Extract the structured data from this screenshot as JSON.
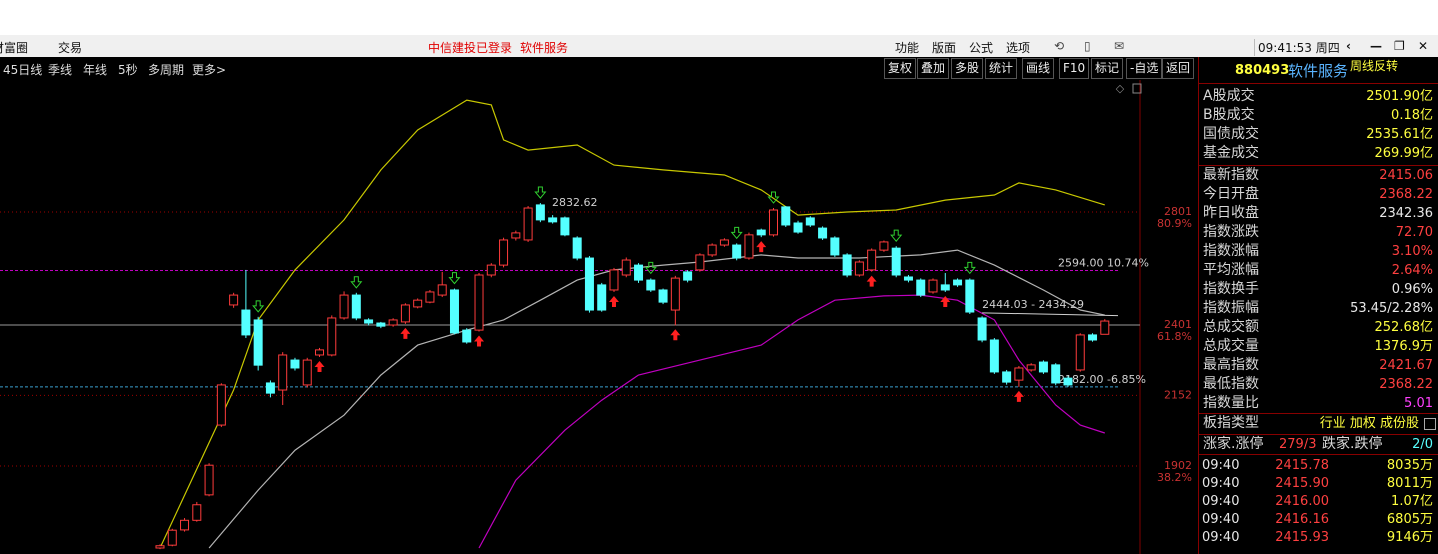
{
  "menu_bar": {
    "left": [
      "财富圈",
      "交易"
    ],
    "login": "中信建投已登录",
    "service": "软件服务",
    "right": [
      "功能",
      "版面",
      "公式",
      "选项"
    ],
    "clock": "09:41:53 周四"
  },
  "toolbar": {
    "periods": [
      "45日线",
      "季线",
      "年线",
      "5秒",
      "多周期",
      "更多>"
    ],
    "buttons": [
      "复权",
      "叠加",
      "多股",
      "统计",
      "画线",
      "F10",
      "标记",
      "-自选",
      "返回"
    ]
  },
  "chart_data": {
    "type": "candlestick",
    "up_color": "#ff3c3c",
    "down_color": "#54ffff",
    "ylim": [
      1612,
      3268
    ],
    "yticks": [
      2801,
      2401,
      2152,
      1902
    ],
    "ytick_percent": [
      "80.9%",
      "61.8%",
      null,
      "38.2%"
    ],
    "open": [
      1612,
      1622,
      1676,
      1710,
      1800,
      2047,
      2472,
      2454,
      2419,
      2196,
      2171,
      2277,
      2189,
      2295,
      2295,
      2426,
      2507,
      2419,
      2408,
      2401,
      2412,
      2465,
      2482,
      2507,
      2525,
      2383,
      2383,
      2578,
      2613,
      2709,
      2702,
      2826,
      2780,
      2780,
      2709,
      2638,
      2543,
      2525,
      2578,
      2613,
      2560,
      2525,
      2454,
      2589,
      2596,
      2649,
      2684,
      2684,
      2638,
      2737,
      2720,
      2819,
      2762,
      2780,
      2744,
      2709,
      2649,
      2578,
      2596,
      2666,
      2673,
      2571,
      2560,
      2518,
      2543,
      2560,
      2560,
      2426,
      2348,
      2235,
      2206,
      2242,
      2270,
      2260,
      2213,
      2242,
      2366,
      2368.22
    ],
    "close": [
      1620,
      1675,
      1710,
      1765,
      1905,
      2189,
      2507,
      2366,
      2259,
      2160,
      2295,
      2249,
      2277,
      2313,
      2426,
      2507,
      2426,
      2408,
      2397,
      2419,
      2472,
      2489,
      2518,
      2543,
      2373,
      2341,
      2578,
      2613,
      2702,
      2727,
      2815,
      2773,
      2766,
      2720,
      2638,
      2454,
      2454,
      2596,
      2631,
      2560,
      2525,
      2482,
      2567,
      2560,
      2649,
      2684,
      2702,
      2638,
      2720,
      2720,
      2808,
      2755,
      2730,
      2755,
      2709,
      2649,
      2578,
      2624,
      2666,
      2695,
      2578,
      2560,
      2507,
      2560,
      2525,
      2543,
      2447,
      2348,
      2235,
      2199,
      2249,
      2260,
      2235,
      2196,
      2189,
      2366,
      2348,
      2415.06
    ],
    "high": [
      1625,
      1680,
      1718,
      1775,
      1912,
      2195,
      2515,
      2596,
      2430,
      2205,
      2305,
      2285,
      2285,
      2320,
      2435,
      2520,
      2515,
      2425,
      2412,
      2425,
      2478,
      2495,
      2525,
      2589,
      2530,
      2390,
      2585,
      2620,
      2710,
      2735,
      2822,
      2832.62,
      2790,
      2785,
      2715,
      2645,
      2550,
      2603,
      2640,
      2620,
      2566,
      2530,
      2575,
      2595,
      2655,
      2690,
      2708,
      2690,
      2728,
      2742,
      2815,
      2822,
      2770,
      2786,
      2750,
      2715,
      2655,
      2630,
      2672,
      2700,
      2680,
      2578,
      2566,
      2566,
      2585,
      2566,
      2566,
      2432,
      2355,
      2242,
      2256,
      2266,
      2276,
      2266,
      2220,
      2372,
      2372,
      2421.67
    ],
    "low": [
      1608,
      1618,
      1670,
      1705,
      1795,
      2040,
      2462,
      2355,
      2240,
      2145,
      2118,
      2240,
      2180,
      2288,
      2290,
      2420,
      2418,
      2400,
      2390,
      2395,
      2405,
      2460,
      2478,
      2500,
      2368,
      2335,
      2378,
      2570,
      2605,
      2700,
      2695,
      2765,
      2760,
      2715,
      2630,
      2445,
      2448,
      2518,
      2570,
      2550,
      2518,
      2475,
      2400,
      2552,
      2590,
      2642,
      2678,
      2630,
      2632,
      2712,
      2714,
      2748,
      2724,
      2748,
      2702,
      2642,
      2570,
      2572,
      2590,
      2660,
      2570,
      2552,
      2500,
      2512,
      2518,
      2536,
      2440,
      2340,
      2228,
      2190,
      2182,
      2236,
      2228,
      2188,
      2182,
      2236,
      2342,
      2368.22
    ],
    "lines": [
      {
        "color": "#c8c800",
        "x": [
          0,
          6,
          8,
          11,
          15,
          18,
          21,
          25,
          27,
          28,
          30,
          34,
          37,
          41,
          46,
          49,
          52,
          56,
          60,
          64,
          68,
          70,
          73,
          77
        ],
        "values": [
          1612,
          2171,
          2419,
          2596,
          2773,
          2950,
          3091,
          3197,
          3180,
          3056,
          3020,
          3038,
          2967,
          2950,
          2932,
          2879,
          2790,
          2801,
          2808,
          2843,
          2861,
          2904,
          2879,
          2826
        ]
      },
      {
        "color": "#b4b4b4",
        "x": [
          4,
          8,
          11,
          15,
          18,
          21,
          25,
          28,
          31,
          34,
          37,
          41,
          44,
          49,
          52,
          57,
          62,
          65,
          68,
          72,
          75,
          77
        ],
        "values": [
          1612,
          1817,
          1958,
          2082,
          2224,
          2330,
          2383,
          2419,
          2489,
          2560,
          2596,
          2613,
          2624,
          2649,
          2638,
          2638,
          2649,
          2666,
          2613,
          2525,
          2454,
          2436
        ]
      },
      {
        "color": "#c000c0",
        "x": [
          26,
          29,
          33,
          36,
          39,
          44,
          49,
          52,
          55,
          59,
          62,
          65,
          68,
          70,
          73,
          75,
          77
        ],
        "values": [
          1612,
          1852,
          2029,
          2135,
          2224,
          2277,
          2330,
          2419,
          2489,
          2504,
          2507,
          2489,
          2419,
          2277,
          2118,
          2047,
          2019
        ]
      }
    ],
    "reference_lines": [
      {
        "value": 2594,
        "label": "2594.00 10.74%",
        "color": "#c000c0"
      },
      {
        "value": 2182,
        "label": "2182.00 -6.85%",
        "color": "#3aa0d0"
      }
    ],
    "segment": {
      "label": "2444.03 - 2434.29",
      "values": [
        2444.03,
        2434.29
      ]
    },
    "high_label": {
      "label": "2832.62",
      "value": 2832.62
    }
  },
  "info_panel": {
    "code": "880493",
    "name": "软件服务",
    "tag": "周线反转",
    "rows": [
      {
        "label": "A股成交",
        "value": "2501.90亿",
        "color": "#ffff40"
      },
      {
        "label": "B股成交",
        "value": "0.18亿",
        "color": "#ffff40"
      },
      {
        "label": "国债成交",
        "value": "2535.61亿",
        "color": "#ffff40"
      },
      {
        "label": "基金成交",
        "value": "269.99亿",
        "color": "#ffff40"
      },
      {
        "label": "最新指数",
        "value": "2415.06",
        "color": "#ff4040"
      },
      {
        "label": "今日开盘",
        "value": "2368.22",
        "color": "#ff4040"
      },
      {
        "label": "昨日收盘",
        "value": "2342.36",
        "color": "#e8e8e8"
      },
      {
        "label": "指数涨跌",
        "value": "72.70",
        "color": "#ff4040"
      },
      {
        "label": "指数涨幅",
        "value": "3.10%",
        "color": "#ff4040"
      },
      {
        "label": "平均涨幅",
        "value": "2.64%",
        "color": "#ff4040"
      },
      {
        "label": "指数换手",
        "value": "0.96%",
        "color": "#e8e8e8"
      },
      {
        "label": "指数振幅",
        "value": "53.45/2.28%",
        "color": "#e8e8e8"
      },
      {
        "label": "总成交额",
        "value": "252.68亿",
        "color": "#ffff40"
      },
      {
        "label": "总成交量",
        "value": "1376.9万",
        "color": "#ffff40"
      },
      {
        "label": "最高指数",
        "value": "2421.67",
        "color": "#ff4040"
      },
      {
        "label": "最低指数",
        "value": "2368.22",
        "color": "#ff4040"
      },
      {
        "label": "指数量比",
        "value": "5.01",
        "color": "#ff40ff"
      }
    ],
    "board_type": {
      "label": "板指类型",
      "value": "行业 加权 成份股"
    },
    "breadth": {
      "up_label": "涨家.涨停",
      "up": "279/3",
      "down_label": "跌家.跌停",
      "down": "2/0"
    },
    "ticks": [
      [
        "09:40",
        "2415.78",
        "8035万"
      ],
      [
        "09:40",
        "2415.90",
        "8011万"
      ],
      [
        "09:40",
        "2416.00",
        "1.07亿"
      ],
      [
        "09:40",
        "2416.16",
        "6805万"
      ],
      [
        "09:40",
        "2415.93",
        "9146万"
      ]
    ]
  }
}
